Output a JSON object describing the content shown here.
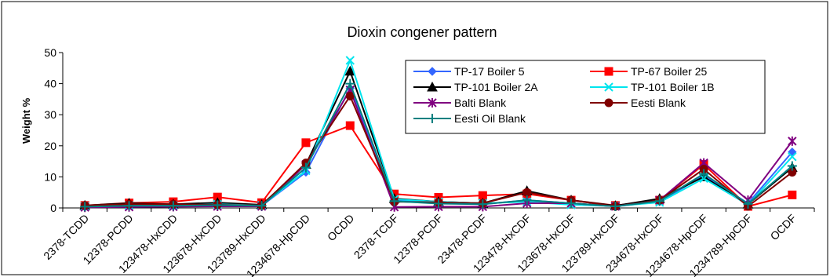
{
  "chart_data": {
    "type": "line",
    "title": "Dioxin congener pattern",
    "xlabel": "",
    "ylabel": "Weight %",
    "ylim": [
      0,
      50
    ],
    "yticks": [
      0,
      10,
      20,
      30,
      40,
      50
    ],
    "grid": false,
    "legend_position": "top-right",
    "categories": [
      "2378-TCDD",
      "12378-PCDD",
      "123478-HxCDD",
      "123678-HxCDD",
      "123789-HxCDD",
      "1234678-HpCDD",
      "OCDD",
      "2378-TCDF",
      "12378-PCDF",
      "23478-PCDF",
      "123478-HxCDF",
      "123678-HxCDF",
      "123789-HxCDF",
      "234678-HxCDF",
      "1234678-HpCDF",
      "1234789-HpCDF",
      "OCDF"
    ],
    "series": [
      {
        "name": "TP-17 Boiler 5",
        "color": "#3366ff",
        "marker": "diamond",
        "values": [
          0.3,
          0.6,
          0.6,
          0.8,
          0.7,
          11.5,
          38.5,
          2.5,
          1.5,
          1.2,
          2.5,
          1.5,
          0.5,
          2.0,
          10.5,
          1.5,
          18.0
        ]
      },
      {
        "name": "TP-67 Boiler 25",
        "color": "#ff0000",
        "marker": "square",
        "values": [
          0.8,
          1.6,
          2.0,
          3.5,
          1.7,
          21.0,
          26.5,
          4.5,
          3.4,
          4.0,
          4.5,
          2.5,
          0.8,
          2.5,
          14.0,
          0.5,
          4.2
        ]
      },
      {
        "name": "TP-101 Boiler 2A",
        "color": "#000000",
        "marker": "triangle",
        "values": [
          0.8,
          1.5,
          1.2,
          1.7,
          1.0,
          14.0,
          44.0,
          3.0,
          2.0,
          1.5,
          5.5,
          2.5,
          0.7,
          3.0,
          10.0,
          1.2,
          13.0
        ]
      },
      {
        "name": "TP-101 Boiler 1B",
        "color": "#00e5ee",
        "marker": "x",
        "values": [
          0.5,
          0.8,
          0.8,
          1.2,
          0.8,
          12.0,
          47.5,
          2.8,
          2.0,
          1.5,
          2.0,
          1.0,
          0.6,
          1.8,
          9.5,
          1.0,
          16.5
        ]
      },
      {
        "name": "Balti Blank",
        "color": "#800080",
        "marker": "star",
        "values": [
          0.2,
          0.3,
          0.4,
          0.5,
          0.5,
          14.0,
          38.0,
          0.3,
          0.4,
          0.4,
          1.5,
          1.5,
          0.5,
          2.5,
          14.5,
          2.5,
          21.5
        ]
      },
      {
        "name": "Eesti Blank",
        "color": "#800000",
        "marker": "circle",
        "values": [
          0.8,
          1.2,
          1.2,
          1.0,
          0.8,
          14.5,
          36.0,
          2.0,
          1.8,
          1.5,
          5.0,
          2.5,
          0.5,
          2.5,
          12.5,
          0.5,
          11.5
        ]
      },
      {
        "name": "Eesti Oil Blank",
        "color": "#008080",
        "marker": "plus",
        "values": [
          0.4,
          0.7,
          0.7,
          0.9,
          0.7,
          13.0,
          40.0,
          2.2,
          1.4,
          1.2,
          2.5,
          1.5,
          0.5,
          2.2,
          11.0,
          1.3,
          13.5
        ]
      }
    ]
  }
}
